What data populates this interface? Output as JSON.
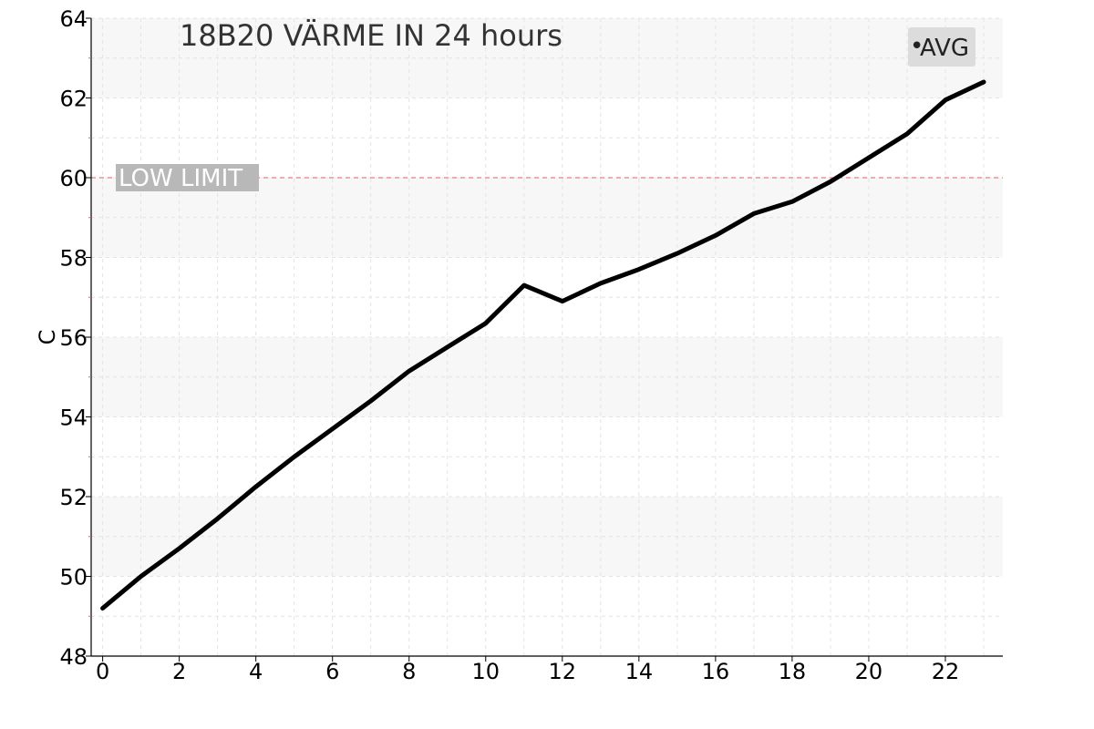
{
  "chart_data": {
    "type": "line",
    "title": "18B20 VÄRME IN 24 hours",
    "xlabel": "",
    "ylabel": "C",
    "xlim": [
      -0.3,
      23.5
    ],
    "ylim": [
      48,
      64
    ],
    "x_ticks": [
      0,
      2,
      4,
      6,
      8,
      10,
      12,
      14,
      16,
      18,
      20,
      22
    ],
    "y_ticks": [
      48,
      50,
      52,
      54,
      56,
      58,
      60,
      62,
      64
    ],
    "grid": true,
    "legend_position": "top-right",
    "legend": [
      {
        "marker": "•",
        "label": "AVG"
      }
    ],
    "series": [
      {
        "name": "AVG",
        "color": "#000000",
        "x": [
          0,
          1,
          2,
          3,
          4,
          5,
          6,
          7,
          8,
          9,
          10,
          11,
          12,
          13,
          14,
          15,
          16,
          17,
          18,
          19,
          20,
          21,
          22,
          23
        ],
        "y": [
          49.2,
          50.0,
          50.7,
          51.45,
          52.25,
          53.0,
          53.7,
          54.4,
          55.15,
          55.75,
          56.35,
          57.3,
          56.9,
          57.35,
          57.7,
          58.1,
          58.55,
          59.1,
          59.4,
          59.9,
          60.5,
          61.1,
          61.95,
          62.4
        ]
      }
    ],
    "annotations": [
      {
        "type": "hline",
        "y": 60,
        "label": "LOW LIMIT",
        "color": "#e06060"
      }
    ]
  }
}
